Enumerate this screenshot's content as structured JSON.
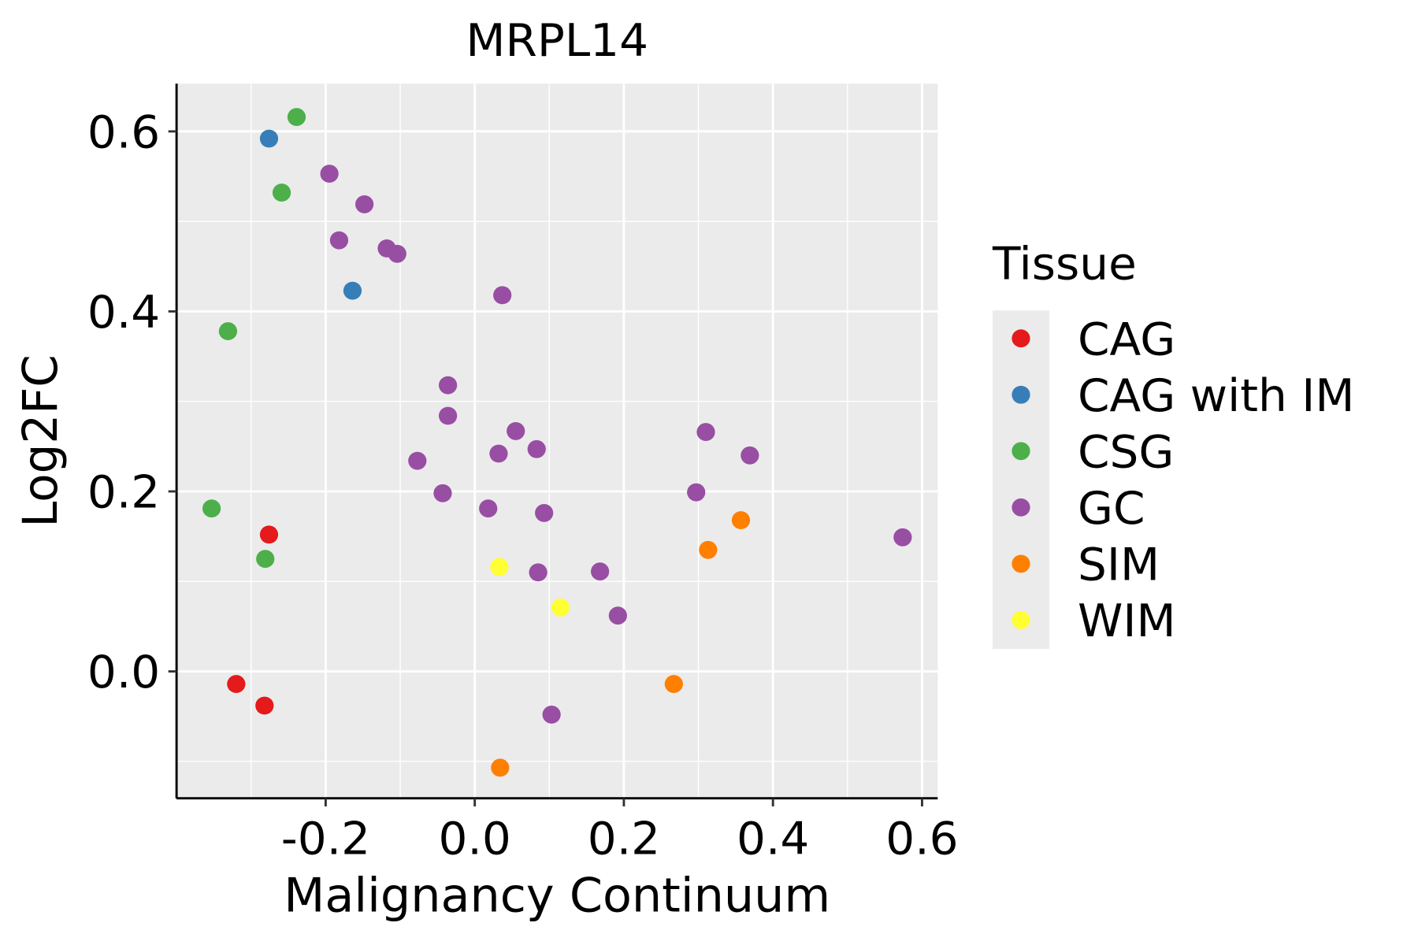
{
  "chart_data": {
    "type": "scatter",
    "title": "MRPL14",
    "xlabel": "Malignancy Continuum",
    "ylabel": "Log2FC",
    "xlim": [
      -0.4,
      0.621
    ],
    "ylim": [
      -0.141,
      0.653
    ],
    "xticks": [
      -0.2,
      0.0,
      0.2,
      0.4,
      0.6
    ],
    "xtick_labels": [
      "-0.2",
      "0.0",
      "0.2",
      "0.4",
      "0.6"
    ],
    "yticks": [
      0.0,
      0.2,
      0.4,
      0.6
    ],
    "ytick_labels": [
      "0.0",
      "0.2",
      "0.4",
      "0.6"
    ],
    "grid": true,
    "legend": {
      "title": "Tissue",
      "placement": "right"
    },
    "series": [
      {
        "name": "CAG",
        "color": "#E41A1C",
        "points": [
          [
            -0.276,
            0.152
          ],
          [
            -0.32,
            -0.014
          ],
          [
            -0.282,
            -0.038
          ]
        ]
      },
      {
        "name": "CAG with IM",
        "color": "#377EB8",
        "points": [
          [
            -0.276,
            0.592
          ],
          [
            -0.164,
            0.423
          ]
        ]
      },
      {
        "name": "CSG",
        "color": "#4DAF4A",
        "points": [
          [
            -0.239,
            0.616
          ],
          [
            -0.259,
            0.532
          ],
          [
            -0.331,
            0.378
          ],
          [
            -0.353,
            0.181
          ],
          [
            -0.281,
            0.125
          ]
        ]
      },
      {
        "name": "GC",
        "color": "#984EA3",
        "points": [
          [
            -0.195,
            0.553
          ],
          [
            -0.148,
            0.519
          ],
          [
            -0.182,
            0.479
          ],
          [
            -0.118,
            0.47
          ],
          [
            -0.104,
            0.464
          ],
          [
            0.037,
            0.418
          ],
          [
            -0.036,
            0.318
          ],
          [
            -0.036,
            0.284
          ],
          [
            -0.077,
            0.234
          ],
          [
            -0.043,
            0.198
          ],
          [
            0.055,
            0.267
          ],
          [
            0.032,
            0.242
          ],
          [
            0.083,
            0.247
          ],
          [
            0.018,
            0.181
          ],
          [
            0.093,
            0.176
          ],
          [
            0.085,
            0.11
          ],
          [
            0.168,
            0.111
          ],
          [
            0.192,
            0.062
          ],
          [
            0.103,
            -0.048
          ],
          [
            0.31,
            0.266
          ],
          [
            0.369,
            0.24
          ],
          [
            0.297,
            0.199
          ],
          [
            0.574,
            0.149
          ]
        ]
      },
      {
        "name": "SIM",
        "color": "#FF7F00",
        "points": [
          [
            0.357,
            0.168
          ],
          [
            0.313,
            0.135
          ],
          [
            0.267,
            -0.014
          ],
          [
            0.034,
            -0.107
          ]
        ]
      },
      {
        "name": "WIM",
        "color": "#FFFF33",
        "points": [
          [
            0.033,
            0.116
          ],
          [
            0.115,
            0.071
          ]
        ]
      }
    ]
  }
}
